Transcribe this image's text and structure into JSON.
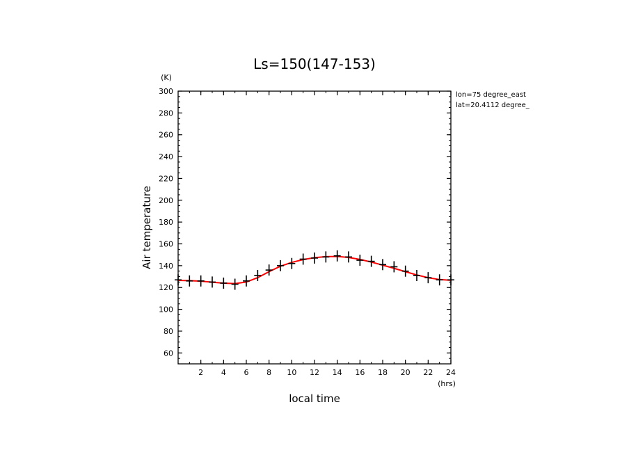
{
  "chart_data": {
    "type": "scatter",
    "title": "Ls=150(147-153)",
    "xlabel": "local time",
    "ylabel": "Air temperature",
    "x_unit": "(hrs)",
    "y_unit": "(K)",
    "annotation": [
      "lon=75 degree_east",
      "lat=20.4112 degree_"
    ],
    "xlim": [
      0,
      24
    ],
    "ylim": [
      50,
      300
    ],
    "x_ticks": [
      2,
      4,
      6,
      8,
      10,
      12,
      14,
      16,
      18,
      20,
      22,
      24
    ],
    "y_ticks": [
      60,
      80,
      100,
      120,
      140,
      160,
      180,
      200,
      220,
      240,
      260,
      280,
      300
    ],
    "grid": false,
    "colors": {
      "fit": "#ff0000",
      "markers": "#000000"
    },
    "series": [
      {
        "marker": "plus",
        "x": [
          0,
          1,
          2,
          3,
          4,
          5,
          6,
          7,
          8,
          9,
          10,
          11,
          12,
          13,
          14,
          15,
          16,
          17,
          18,
          19,
          20,
          21,
          22,
          23,
          24
        ],
        "y": [
          127,
          126,
          126,
          125,
          124,
          123,
          126,
          131,
          136,
          140,
          142,
          146,
          147,
          148,
          149,
          148,
          145,
          144,
          141,
          139,
          135,
          131,
          129,
          127,
          127
        ]
      },
      {
        "line": "solid",
        "x": [
          0,
          1,
          2,
          3,
          4,
          5,
          6,
          7,
          8,
          9,
          10,
          11,
          12,
          13,
          14,
          15,
          16,
          17,
          18,
          19,
          20,
          21,
          22,
          23,
          24
        ],
        "y": [
          126.5,
          126.3,
          125.8,
          124.9,
          124.0,
          123.6,
          125.0,
          129.0,
          134.5,
          139.5,
          143.0,
          145.6,
          147.3,
          148.3,
          148.5,
          147.6,
          145.7,
          143.3,
          140.5,
          137.6,
          134.5,
          131.5,
          129.0,
          127.3,
          126.6
        ]
      }
    ]
  }
}
